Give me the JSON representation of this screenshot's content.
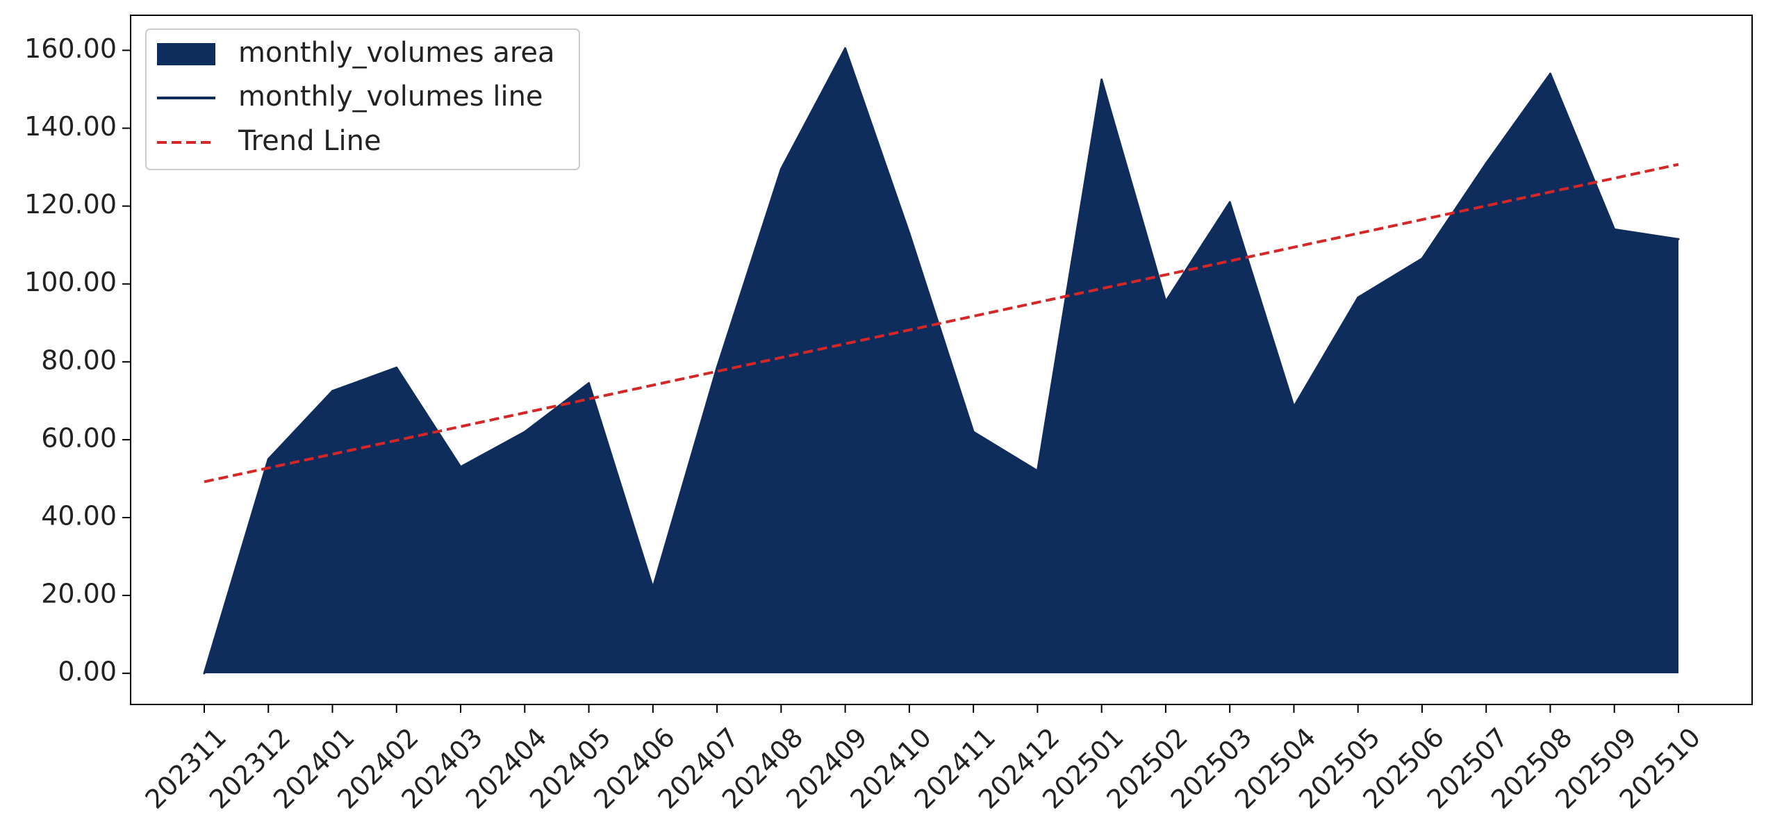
{
  "chart_data": {
    "type": "area",
    "title": "",
    "xlabel": "",
    "ylabel": "",
    "categories": [
      "202311",
      "202312",
      "202401",
      "202402",
      "202403",
      "202404",
      "202405",
      "202406",
      "202407",
      "202408",
      "202409",
      "202410",
      "202411",
      "202412",
      "202501",
      "202502",
      "202503",
      "202504",
      "202505",
      "202506",
      "202507",
      "202508",
      "202509",
      "202510"
    ],
    "series": [
      {
        "name": "monthly_volumes area",
        "kind": "area",
        "color": "#0f2d5c",
        "values": [
          0,
          55,
          72.5,
          78.5,
          53,
          62,
          74.5,
          22,
          78.5,
          129.5,
          160.5,
          113,
          62,
          52,
          152.5,
          95.5,
          121,
          68.5,
          96.5,
          106.5,
          131,
          154,
          114,
          111.5
        ]
      },
      {
        "name": "monthly_volumes line",
        "kind": "line",
        "color": "#0f2d5c",
        "values": [
          0,
          55,
          72.5,
          78.5,
          53,
          62,
          74.5,
          22,
          78.5,
          129.5,
          160.5,
          113,
          62,
          52,
          152.5,
          95.5,
          121,
          68.5,
          96.5,
          106.5,
          131,
          154,
          114,
          111.5
        ]
      },
      {
        "name": "Trend Line",
        "kind": "dashed-line",
        "color": "#d62728",
        "start": 49.2,
        "end": 130.7
      }
    ],
    "ylim": [
      -8,
      169
    ],
    "yticks": [
      0,
      20,
      40,
      60,
      80,
      100,
      120,
      140,
      160
    ],
    "ytick_labels": [
      "0.00",
      "20.00",
      "40.00",
      "60.00",
      "80.00",
      "100.00",
      "120.00",
      "140.00",
      "160.00"
    ],
    "grid": false,
    "legend_position": "top-left",
    "legend": [
      "monthly_volumes area",
      "monthly_volumes line",
      "Trend Line"
    ]
  }
}
